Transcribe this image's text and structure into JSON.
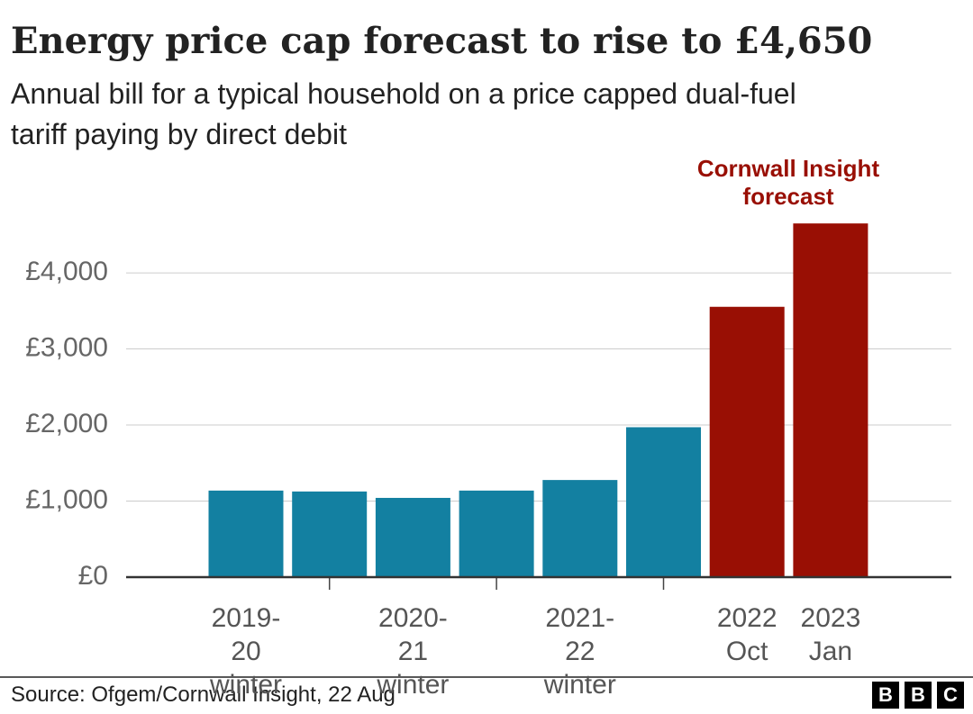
{
  "chart_data": {
    "type": "bar",
    "title": "Energy price cap forecast to rise to £4,650",
    "subtitle": "Annual bill for a typical household on a price capped dual-fuel tariff paying by direct debit",
    "annotation": "Cornwall Insight forecast",
    "categories": [
      "2019-20 winter",
      null,
      "2020-21 winter",
      null,
      "2021-22 winter",
      null,
      "2022 Oct",
      "2023 Jan"
    ],
    "values": [
      1138,
      1126,
      1042,
      1138,
      1277,
      1971,
      3554,
      4650
    ],
    "colors": [
      "#1380a1",
      "#1380a1",
      "#1380a1",
      "#1380a1",
      "#1380a1",
      "#1380a1",
      "#990f04",
      "#990f04"
    ],
    "ylim": [
      0,
      4865
    ],
    "yticks": [
      {
        "value": 0,
        "label": "£0"
      },
      {
        "value": 1000,
        "label": "£1,000"
      },
      {
        "value": 2000,
        "label": "£2,000"
      },
      {
        "value": 3000,
        "label": "£3,000"
      },
      {
        "value": 4000,
        "label": "£4,000"
      }
    ],
    "grid": true,
    "source": "Source: Ofgem/Cornwall Insight, 22 Aug",
    "logo": [
      "B",
      "B",
      "C"
    ]
  }
}
